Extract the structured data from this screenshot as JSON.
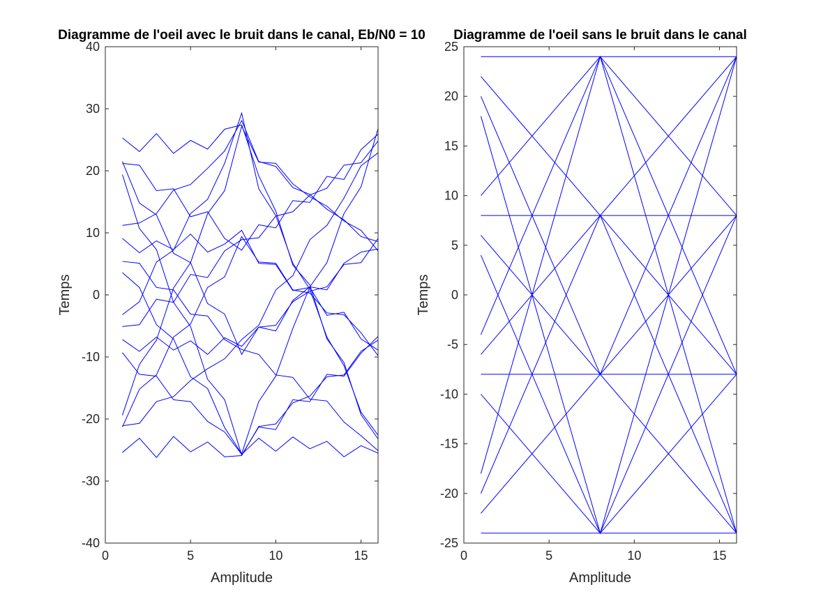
{
  "chart_data": [
    {
      "type": "line",
      "title": "Diagramme de l'oeil avec le bruit dans le canal, Eb/N0 = 10",
      "xlabel": "Amplitude",
      "ylabel": "Temps",
      "color": "#0000ff",
      "xlim": [
        0,
        16
      ],
      "xticks": [
        0,
        5,
        10,
        15
      ],
      "ylim": [
        -40,
        40
      ],
      "yticks": [
        -40,
        -30,
        -20,
        -10,
        0,
        10,
        20,
        30,
        40
      ],
      "x": [
        1,
        2,
        3,
        4,
        5,
        6,
        7,
        8,
        9,
        10,
        11,
        12,
        13,
        14,
        15,
        16
      ],
      "lines": [
        [
          25.3,
          23.1,
          26.0,
          22.8,
          24.9,
          23.5,
          26.7,
          27.4,
          19.2,
          13.5,
          4.8,
          1.6,
          -7.1,
          -10.9,
          -19.3,
          -23.2
        ],
        [
          21.2,
          20.9,
          16.8,
          17.1,
          12.6,
          13.4,
          9.1,
          7.2,
          11.3,
          10.8,
          15.2,
          14.9,
          19.1,
          18.6,
          23.4,
          25.9
        ],
        [
          21.5,
          14.8,
          12.9,
          6.7,
          5.2,
          -1.4,
          -3.1,
          -9.6,
          -5.2,
          -5.8,
          -0.9,
          1.3,
          0.8,
          5.1,
          6.9,
          7.4
        ],
        [
          19.4,
          10.7,
          7.3,
          -1.2,
          -5.1,
          -13.6,
          -16.9,
          -25.8,
          -21.3,
          -21.7,
          -16.9,
          -17.2,
          -12.8,
          -13.1,
          -9.4,
          -6.7
        ],
        [
          11.2,
          11.6,
          13.1,
          16.9,
          17.8,
          20.4,
          23.2,
          28.1,
          21.5,
          20.7,
          17.3,
          16.2,
          13.8,
          12.1,
          9.4,
          8.6
        ],
        [
          9.1,
          6.8,
          8.7,
          7.3,
          9.8,
          6.9,
          8.2,
          10.4,
          5.1,
          4.9,
          0.7,
          1.2,
          -3.3,
          -2.8,
          -7.1,
          -8.9
        ],
        [
          5.4,
          5.1,
          1.2,
          0.8,
          -3.1,
          -3.4,
          -7.2,
          -8.8,
          -9.6,
          -12.9,
          -13.3,
          -16.8,
          -17.1,
          -20.5,
          -22.7,
          -25.1
        ],
        [
          3.6,
          1.2,
          -4.8,
          -7.1,
          -13.2,
          -15.1,
          -21.4,
          -25.6,
          -17.2,
          -13.1,
          -5.4,
          1.3,
          5.2,
          13.1,
          17.4,
          26.8
        ],
        [
          -3.2,
          -1.1,
          5.3,
          7.2,
          13.1,
          15.4,
          21.2,
          29.3,
          17.1,
          12.8,
          5.1,
          0.9,
          -6.8,
          -11.4,
          -18.9,
          -22.6
        ],
        [
          -5.1,
          -4.8,
          -0.7,
          -1.2,
          3.3,
          2.8,
          7.1,
          8.9,
          9.2,
          12.7,
          13.4,
          16.1,
          17.2,
          20.9,
          21.3,
          24.8
        ],
        [
          -7.2,
          -9.1,
          -6.8,
          -8.9,
          -7.4,
          -9.6,
          -6.9,
          -8.3,
          -5.2,
          -4.9,
          -1.1,
          0.6,
          1.3,
          4.9,
          5.2,
          9.1
        ],
        [
          -9.3,
          -12.8,
          -13.1,
          -16.9,
          -17.2,
          -20.4,
          -22.1,
          -25.7,
          -23.1,
          -25.2,
          -22.9,
          -24.8,
          -23.6,
          -26.1,
          -24.3,
          -25.5
        ],
        [
          -19.4,
          -11.2,
          -7.3,
          1.1,
          5.2,
          13.1,
          16.8,
          27.2,
          21.4,
          21.2,
          17.9,
          15.8,
          14.3,
          11.9,
          10.4,
          7.1
        ],
        [
          -21.3,
          -15.2,
          -12.9,
          -6.8,
          -4.7,
          1.2,
          2.9,
          9.4,
          5.3,
          5.1,
          0.8,
          0.3,
          -2.9,
          -3.2,
          -6.1,
          -9.8
        ],
        [
          -21.1,
          -20.7,
          -17.2,
          -16.4,
          -13.8,
          -11.9,
          -10.3,
          -7.2,
          -4.9,
          0.8,
          3.1,
          8.9,
          11.2,
          15.6,
          20.8,
          22.9
        ],
        [
          -25.4,
          -23.1,
          -26.2,
          -22.8,
          -25.3,
          -23.7,
          -26.1,
          -25.9,
          -21.2,
          -20.8,
          -17.4,
          -16.3,
          -13.2,
          -12.9,
          -9.1,
          -7.3
        ]
      ]
    },
    {
      "type": "line",
      "title": "Diagramme de l'oeil sans le bruit dans le canal",
      "xlabel": "Amplitude",
      "ylabel": "Temps",
      "color": "#0000ff",
      "xlim": [
        0,
        16
      ],
      "xticks": [
        0,
        5,
        10,
        15
      ],
      "ylim": [
        -25,
        25
      ],
      "yticks": [
        -25,
        -20,
        -15,
        -10,
        -5,
        0,
        5,
        10,
        15,
        20,
        25
      ],
      "x": [
        1,
        8,
        16
      ],
      "lines": [
        [
          24,
          24,
          24
        ],
        [
          22,
          8,
          24
        ],
        [
          20,
          -8,
          24
        ],
        [
          18,
          -24,
          24
        ],
        [
          10,
          24,
          8
        ],
        [
          8,
          8,
          8
        ],
        [
          6,
          -8,
          8
        ],
        [
          4,
          -24,
          8
        ],
        [
          -4,
          24,
          -8
        ],
        [
          -6,
          8,
          -8
        ],
        [
          -8,
          -8,
          -8
        ],
        [
          -10,
          -24,
          -8
        ],
        [
          -18,
          24,
          -24
        ],
        [
          -20,
          8,
          -24
        ],
        [
          -22,
          -8,
          -24
        ],
        [
          -24,
          -24,
          -24
        ]
      ]
    }
  ]
}
